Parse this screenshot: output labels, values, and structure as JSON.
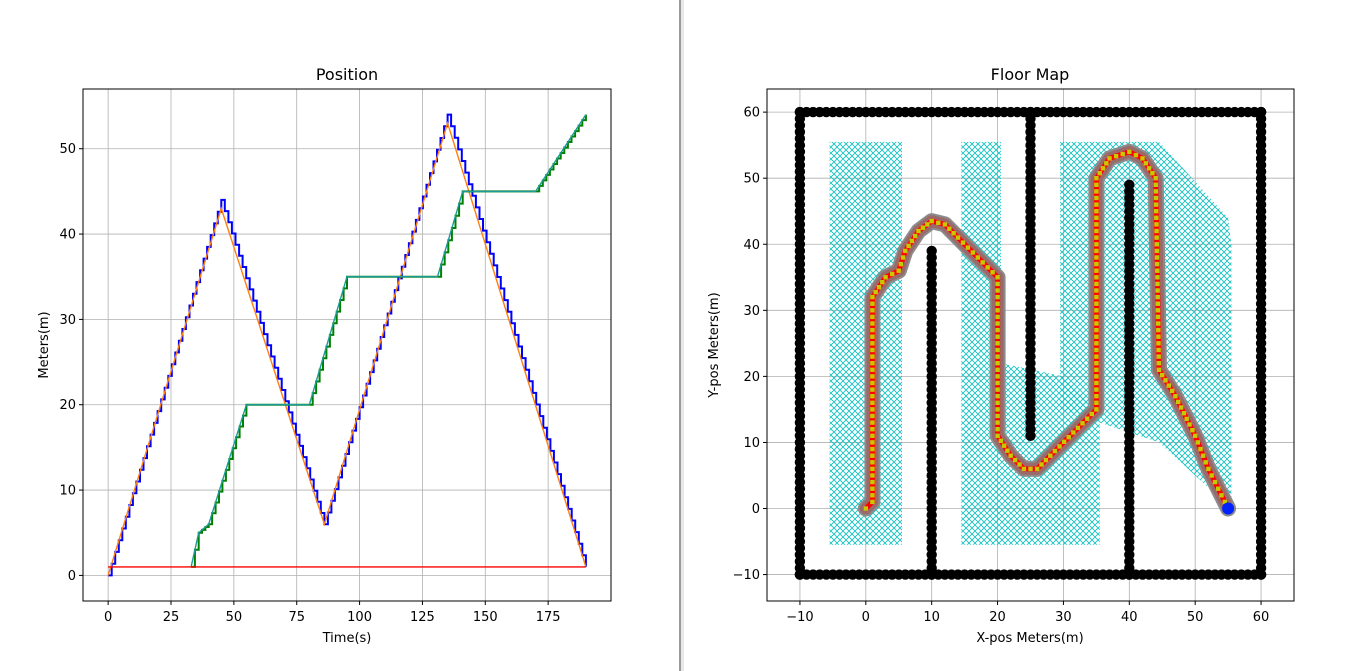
{
  "chart_data": [
    {
      "type": "line",
      "title": "Position",
      "xlabel": "Time(s)",
      "ylabel": "Meters(m)",
      "xlim": [
        -10,
        200
      ],
      "ylim": [
        -3,
        57
      ],
      "grid": true,
      "xticks": [
        0,
        25,
        50,
        75,
        100,
        125,
        150,
        175
      ],
      "yticks": [
        0,
        10,
        20,
        30,
        40,
        50
      ],
      "series": [
        {
          "color": "#0000ff",
          "style": "steps",
          "x": [
            0,
            45,
            86,
            135,
            190
          ],
          "y": [
            0,
            44,
            6,
            54,
            1
          ]
        },
        {
          "color": "#ff7f0e",
          "x": [
            0,
            45,
            86,
            135,
            190
          ],
          "y": [
            0,
            43,
            6,
            53,
            1
          ]
        },
        {
          "color": "#008000",
          "style": "steps",
          "x": [
            33,
            36,
            40,
            55,
            80,
            95,
            131,
            141,
            170,
            190
          ],
          "y": [
            1,
            5,
            6,
            20,
            20,
            35,
            35,
            45,
            45,
            54
          ]
        },
        {
          "color": "#1f9a9a",
          "x": [
            33,
            36,
            40,
            55,
            80,
            95,
            131,
            141,
            170,
            190
          ],
          "y": [
            1,
            5,
            6,
            20,
            20,
            35,
            35,
            45,
            45,
            54
          ]
        },
        {
          "color": "#ff0000",
          "x": [
            0,
            190
          ],
          "y": [
            1,
            1
          ]
        }
      ]
    },
    {
      "type": "scatter",
      "title": "Floor Map",
      "xlabel": "X-pos Meters(m)",
      "ylabel": "Y-pos Meters(m)",
      "xlim": [
        -15,
        65
      ],
      "ylim": [
        -14,
        63.5
      ],
      "grid": true,
      "xticks": [
        -10,
        0,
        10,
        20,
        30,
        40,
        50,
        60
      ],
      "yticks": [
        -10,
        0,
        10,
        20,
        30,
        40,
        50,
        60
      ],
      "walls": [
        [
          [
            -10,
            -10
          ],
          [
            60,
            -10
          ]
        ],
        [
          [
            -10,
            60
          ],
          [
            60,
            60
          ]
        ],
        [
          [
            -10,
            -10
          ],
          [
            -10,
            60
          ]
        ],
        [
          [
            60,
            -10
          ],
          [
            60,
            60
          ]
        ],
        [
          [
            10,
            -10
          ],
          [
            10,
            39
          ]
        ],
        [
          [
            25,
            11
          ],
          [
            25,
            60
          ]
        ],
        [
          [
            40,
            -10
          ],
          [
            40,
            49
          ]
        ]
      ],
      "coverage": [
        [
          [
            -5.5,
            -5.5
          ],
          [
            5.5,
            -5.5
          ],
          [
            5.5,
            55.5
          ],
          [
            -5.5,
            55.5
          ]
        ],
        [
          [
            14.5,
            -5.5
          ],
          [
            35.5,
            -5.5
          ],
          [
            35.5,
            15
          ],
          [
            30,
            20
          ],
          [
            20.5,
            22
          ],
          [
            20.5,
            55.5
          ],
          [
            14.5,
            55.5
          ]
        ],
        [
          [
            29.5,
            15
          ],
          [
            29.5,
            55.5
          ],
          [
            44.5,
            55.5
          ],
          [
            55,
            44
          ],
          [
            55.5,
            40
          ],
          [
            55.5,
            0
          ],
          [
            44.5,
            10
          ]
        ]
      ],
      "path": [
        [
          0,
          0
        ],
        [
          1,
          1
        ],
        [
          1,
          32
        ],
        [
          3,
          35
        ],
        [
          5,
          36
        ],
        [
          6,
          39
        ],
        [
          8,
          42
        ],
        [
          10,
          43.5
        ],
        [
          12,
          43
        ],
        [
          14,
          41
        ],
        [
          17,
          38
        ],
        [
          20,
          35
        ],
        [
          20,
          11
        ],
        [
          22,
          8
        ],
        [
          24,
          6
        ],
        [
          26,
          6
        ],
        [
          28,
          8
        ],
        [
          35,
          15
        ],
        [
          35,
          50
        ],
        [
          37,
          53
        ],
        [
          40,
          54
        ],
        [
          42,
          53
        ],
        [
          44,
          50
        ],
        [
          44.5,
          21
        ],
        [
          47,
          17
        ],
        [
          50,
          11
        ],
        [
          52,
          6
        ],
        [
          54,
          2
        ],
        [
          55,
          0
        ]
      ],
      "end_point": [
        55,
        0
      ]
    }
  ]
}
